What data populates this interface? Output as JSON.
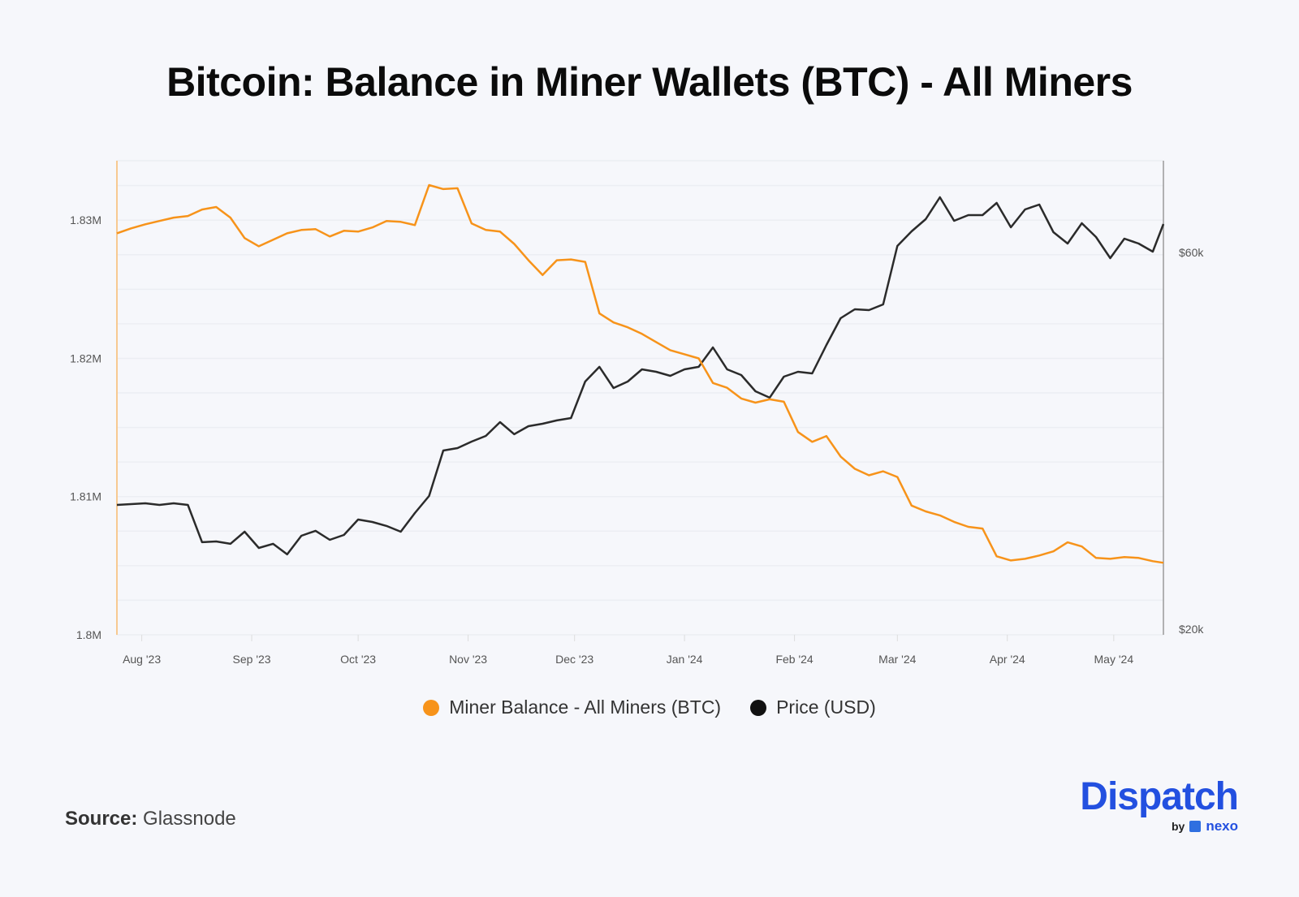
{
  "title": "Bitcoin: Balance in Miner Wallets (BTC) - All Miners",
  "source_label": "Source:",
  "source_value": "Glassnode",
  "logo": {
    "brand": "Dispatch",
    "by": "by",
    "partner": "nexo"
  },
  "colors": {
    "miner_balance": "#f7931a",
    "price": "#2b2b2b",
    "background": "#f6f7fb",
    "brand": "#2350e0"
  },
  "chart_data": {
    "type": "line",
    "title": "Bitcoin: Balance in Miner Wallets (BTC) - All Miners",
    "xlim": [
      "2023-07-25",
      "2024-05-15"
    ],
    "x_tick_labels": [
      {
        "date": "2023-08-01",
        "label": "Aug '23"
      },
      {
        "date": "2023-09-01",
        "label": "Sep '23"
      },
      {
        "date": "2023-10-01",
        "label": "Oct '23"
      },
      {
        "date": "2023-11-01",
        "label": "Nov '23"
      },
      {
        "date": "2023-12-01",
        "label": "Dec '23"
      },
      {
        "date": "2024-01-01",
        "label": "Jan '24"
      },
      {
        "date": "2024-02-01",
        "label": "Feb '24"
      },
      {
        "date": "2024-03-01",
        "label": "Mar '24"
      },
      {
        "date": "2024-04-01",
        "label": "Apr '24"
      },
      {
        "date": "2024-05-01",
        "label": "May '24"
      }
    ],
    "y_left": {
      "scale": "linear",
      "lim": [
        1800000,
        1834300
      ],
      "ticks": [
        {
          "value": 1800000,
          "label": "1.8M"
        },
        {
          "value": 1810000,
          "label": "1.81M"
        },
        {
          "value": 1820000,
          "label": "1.82M"
        },
        {
          "value": 1830000,
          "label": "1.83M"
        }
      ]
    },
    "y_right": {
      "scale": "log",
      "lim": [
        19670,
        78420
      ],
      "ticks": [
        {
          "value": 20000,
          "label": "$20k"
        },
        {
          "value": 60000,
          "label": "$60k"
        }
      ]
    },
    "grid": true,
    "legend": "bottom",
    "x": [
      "2023-07-25",
      "2023-07-29",
      "2023-08-02",
      "2023-08-06",
      "2023-08-10",
      "2023-08-14",
      "2023-08-18",
      "2023-08-22",
      "2023-08-26",
      "2023-08-30",
      "2023-09-03",
      "2023-09-07",
      "2023-09-11",
      "2023-09-15",
      "2023-09-19",
      "2023-09-23",
      "2023-09-27",
      "2023-10-01",
      "2023-10-05",
      "2023-10-09",
      "2023-10-13",
      "2023-10-17",
      "2023-10-21",
      "2023-10-25",
      "2023-10-29",
      "2023-11-02",
      "2023-11-06",
      "2023-11-10",
      "2023-11-14",
      "2023-11-18",
      "2023-11-22",
      "2023-11-26",
      "2023-11-30",
      "2023-12-04",
      "2023-12-08",
      "2023-12-12",
      "2023-12-16",
      "2023-12-20",
      "2023-12-24",
      "2023-12-28",
      "2024-01-01",
      "2024-01-05",
      "2024-01-09",
      "2024-01-13",
      "2024-01-17",
      "2024-01-21",
      "2024-01-25",
      "2024-01-29",
      "2024-02-02",
      "2024-02-06",
      "2024-02-10",
      "2024-02-14",
      "2024-02-18",
      "2024-02-22",
      "2024-02-26",
      "2024-03-01",
      "2024-03-05",
      "2024-03-09",
      "2024-03-13",
      "2024-03-17",
      "2024-03-21",
      "2024-03-25",
      "2024-03-29",
      "2024-04-02",
      "2024-04-06",
      "2024-04-10",
      "2024-04-14",
      "2024-04-18",
      "2024-04-22",
      "2024-04-26",
      "2024-04-30",
      "2024-05-04",
      "2024-05-08",
      "2024-05-12",
      "2024-05-15"
    ],
    "series": [
      {
        "name": "Miner Balance - All Miners (BTC)",
        "axis": "left",
        "color": "#f7931a",
        "values": [
          1829050,
          1829410,
          1829700,
          1829940,
          1830180,
          1830300,
          1830770,
          1830950,
          1830180,
          1828700,
          1828110,
          1828580,
          1829050,
          1829290,
          1829350,
          1828820,
          1829230,
          1829170,
          1829470,
          1829940,
          1829880,
          1829640,
          1832540,
          1832250,
          1832310,
          1829760,
          1829290,
          1829170,
          1828280,
          1827100,
          1826030,
          1827100,
          1827160,
          1826980,
          1823250,
          1822600,
          1822250,
          1821770,
          1821180,
          1820590,
          1820300,
          1820000,
          1818220,
          1817870,
          1817100,
          1816800,
          1817040,
          1816860,
          1814670,
          1813960,
          1814380,
          1812900,
          1812010,
          1811540,
          1811830,
          1811420,
          1809350,
          1808930,
          1808640,
          1808170,
          1807810,
          1807690,
          1805680,
          1805380,
          1805500,
          1805740,
          1806040,
          1806690,
          1806390,
          1805560,
          1805500,
          1805620,
          1805560,
          1805330,
          1805210
        ]
      },
      {
        "name": "Price (USD)",
        "axis": "right",
        "color": "#2b2b2b",
        "values": [
          28730,
          28800,
          28870,
          28730,
          28870,
          28730,
          25770,
          25830,
          25650,
          26570,
          25340,
          25650,
          24870,
          26260,
          26640,
          25950,
          26320,
          27530,
          27340,
          27020,
          26570,
          28060,
          29490,
          33670,
          33910,
          34560,
          35140,
          36580,
          35310,
          36150,
          36410,
          36760,
          37020,
          41180,
          42980,
          40410,
          41180,
          42670,
          42370,
          41870,
          42670,
          42980,
          45490,
          42670,
          41970,
          40030,
          39280,
          41770,
          42370,
          42170,
          45810,
          49530,
          50840,
          50720,
          51570,
          61160,
          63820,
          66120,
          70490,
          65810,
          66910,
          66910,
          69330,
          64580,
          68040,
          69010,
          63670,
          61590,
          65350,
          62770,
          59020,
          62470,
          61590,
          60150,
          65190
        ]
      }
    ]
  }
}
